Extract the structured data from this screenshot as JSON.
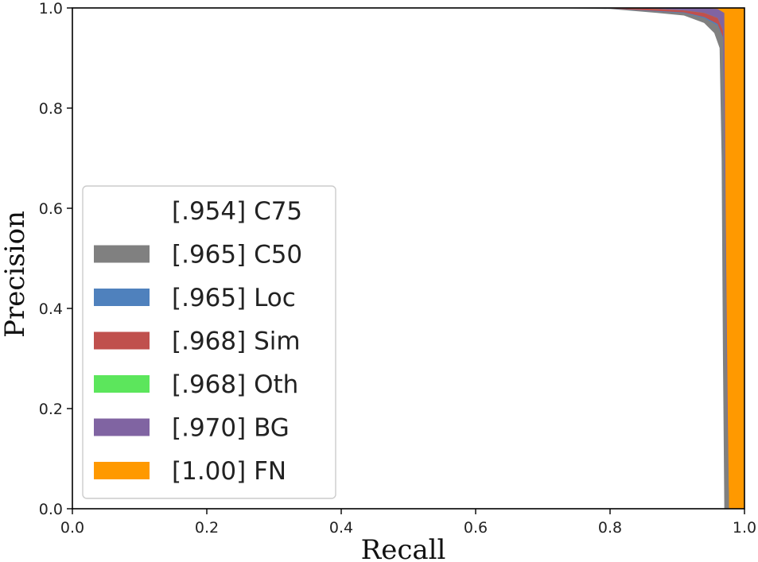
{
  "chart_data": {
    "type": "area",
    "title": "",
    "xlabel": "Recall",
    "ylabel": "Precision",
    "xlim": [
      0.0,
      1.0
    ],
    "ylim": [
      0.0,
      1.0
    ],
    "grid": false,
    "legend_placement": "lower-left",
    "x_ticks": [
      "0.0",
      "0.2",
      "0.4",
      "0.6",
      "0.8",
      "1.0"
    ],
    "y_ticks": [
      "0.0",
      "0.2",
      "0.4",
      "0.6",
      "0.8",
      "1.0"
    ],
    "series": [
      {
        "name": "C75",
        "score": ".954",
        "color": "#ffffff",
        "points": [
          [
            0,
            1.0
          ],
          [
            0.7,
            1.0
          ],
          [
            0.8,
            0.998
          ],
          [
            0.87,
            0.99
          ],
          [
            0.91,
            0.985
          ],
          [
            0.94,
            0.97
          ],
          [
            0.955,
            0.95
          ],
          [
            0.963,
            0.92
          ],
          [
            0.966,
            0.7
          ],
          [
            0.968,
            0.3
          ],
          [
            0.97,
            0.0
          ]
        ]
      },
      {
        "name": "C50",
        "score": ".965",
        "color": "#808080",
        "points": [
          [
            0,
            1.0
          ],
          [
            0.7,
            1.0
          ],
          [
            0.8,
            0.999
          ],
          [
            0.87,
            0.993
          ],
          [
            0.91,
            0.99
          ],
          [
            0.94,
            0.98
          ],
          [
            0.96,
            0.965
          ],
          [
            0.968,
            0.94
          ],
          [
            0.971,
            0.6
          ],
          [
            0.974,
            0.2
          ],
          [
            0.977,
            0.0
          ]
        ]
      },
      {
        "name": "Loc",
        "score": ".965",
        "color": "#4f81bd",
        "points": [
          [
            0,
            1.0
          ],
          [
            0.7,
            1.0
          ],
          [
            0.8,
            0.999
          ],
          [
            0.87,
            0.994
          ],
          [
            0.91,
            0.991
          ],
          [
            0.94,
            0.982
          ],
          [
            0.96,
            0.968
          ],
          [
            0.968,
            0.942
          ],
          [
            0.971,
            0.6
          ],
          [
            0.974,
            0.2
          ],
          [
            0.977,
            0.0
          ]
        ]
      },
      {
        "name": "Sim",
        "score": ".968",
        "color": "#c0504d",
        "points": [
          [
            0,
            1.0
          ],
          [
            0.68,
            1.0
          ],
          [
            0.75,
            1.0
          ],
          [
            0.8,
            1.0
          ],
          [
            0.87,
            0.998
          ],
          [
            0.91,
            0.995
          ],
          [
            0.94,
            0.99
          ],
          [
            0.96,
            0.98
          ],
          [
            0.968,
            0.955
          ],
          [
            0.971,
            0.6
          ],
          [
            0.974,
            0.2
          ],
          [
            0.977,
            0.0
          ]
        ]
      },
      {
        "name": "Oth",
        "score": ".968",
        "color": "#5ce65c",
        "points": [
          [
            0,
            1.0
          ],
          [
            0.68,
            1.0
          ],
          [
            0.75,
            1.0
          ],
          [
            0.8,
            1.0
          ],
          [
            0.87,
            0.998
          ],
          [
            0.91,
            0.995
          ],
          [
            0.94,
            0.99
          ],
          [
            0.96,
            0.98
          ],
          [
            0.968,
            0.955
          ],
          [
            0.971,
            0.6
          ],
          [
            0.974,
            0.2
          ],
          [
            0.977,
            0.0
          ]
        ]
      },
      {
        "name": "BG",
        "score": ".970",
        "color": "#8064a2",
        "points": [
          [
            0,
            1.0
          ],
          [
            0.7,
            1.0
          ],
          [
            0.87,
            1.0
          ],
          [
            0.94,
            1.0
          ],
          [
            0.96,
            0.998
          ],
          [
            0.97,
            0.99
          ],
          [
            0.972,
            0.6
          ],
          [
            0.975,
            0.2
          ],
          [
            0.977,
            0.0
          ]
        ]
      },
      {
        "name": "FN",
        "score": "1.00",
        "color": "#ff9900",
        "points": [
          [
            0,
            1.0
          ],
          [
            0.97,
            1.0
          ],
          [
            0.972,
            1.0
          ],
          [
            1.0,
            1.0
          ],
          [
            1.0,
            0.0
          ]
        ]
      }
    ]
  }
}
